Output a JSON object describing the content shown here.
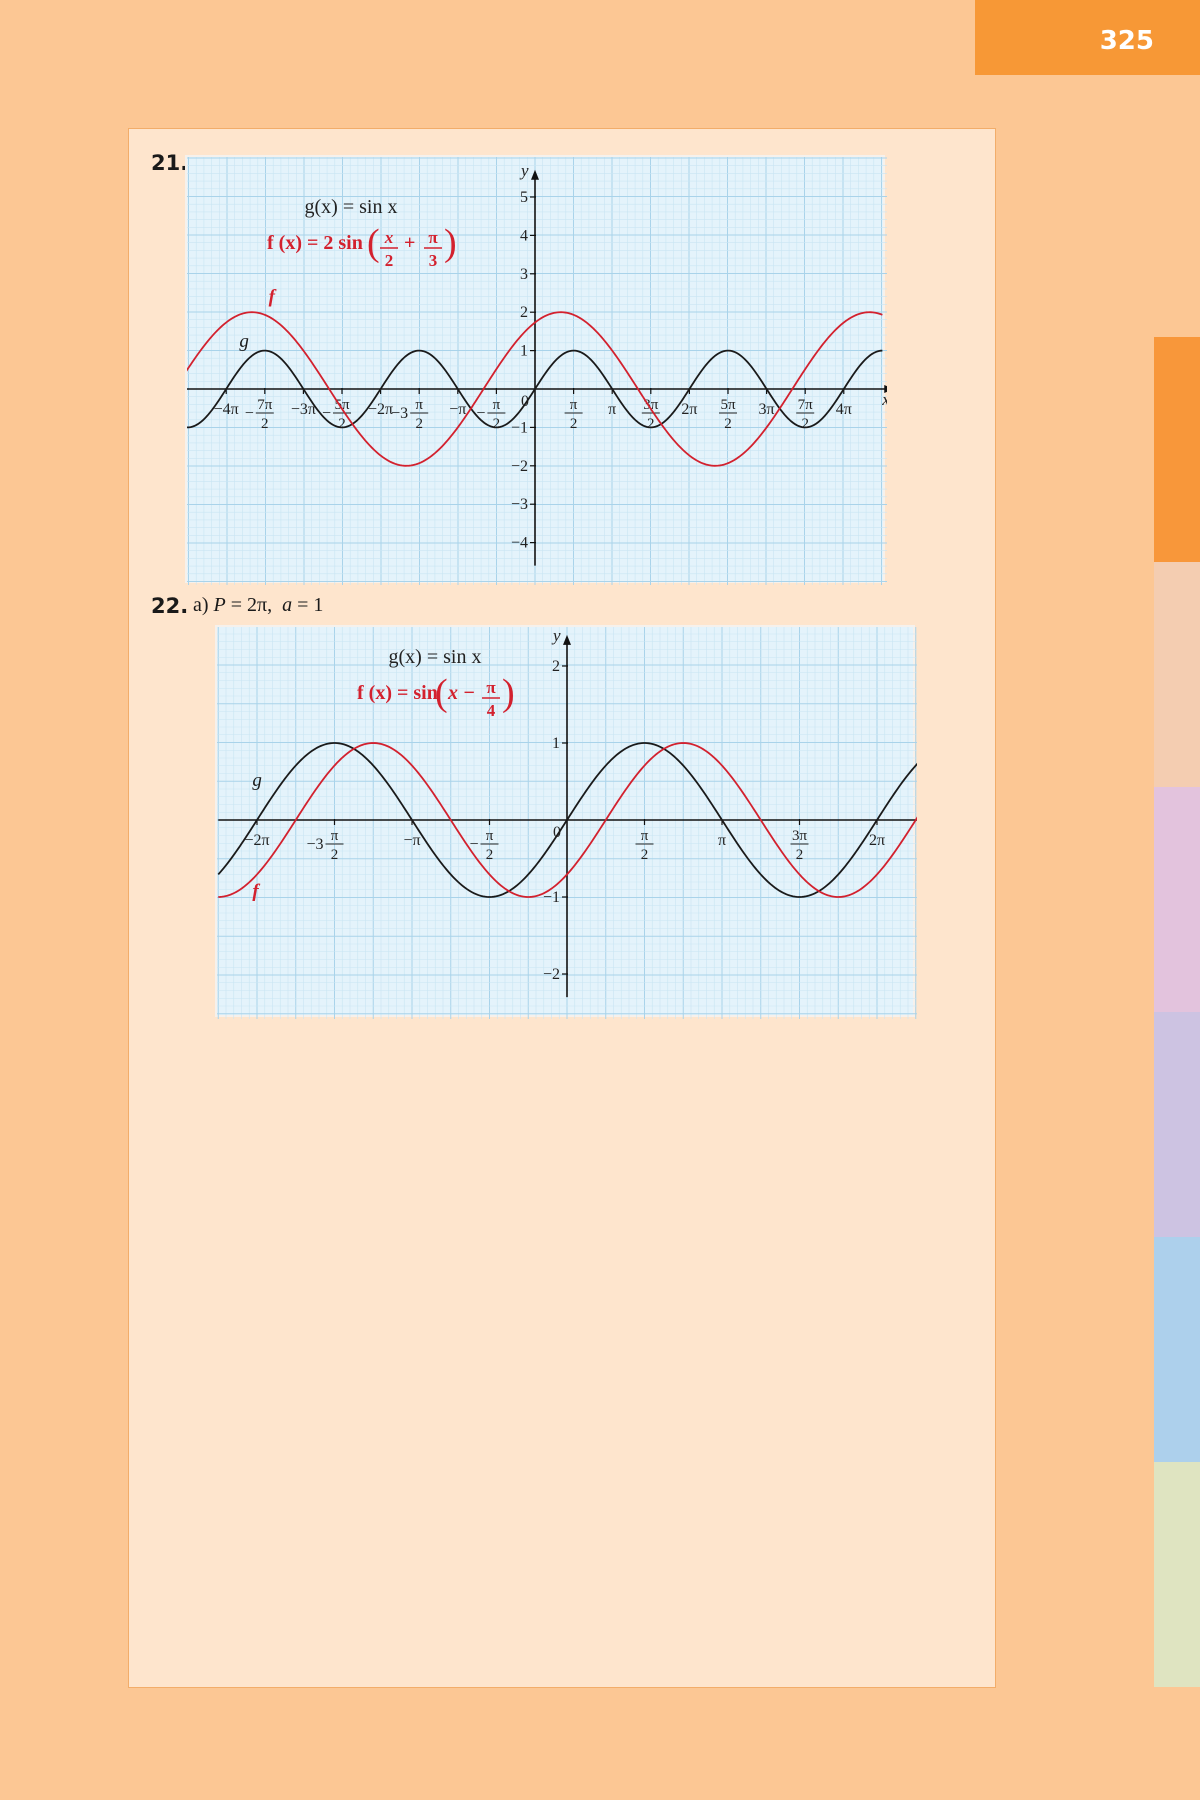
{
  "page": {
    "number": "325",
    "side_tabs": [
      "#f8973a",
      "#f4cdb1",
      "#e3c3dd",
      "#cdc3e2",
      "#add0ec",
      "#dfe4c1"
    ]
  },
  "exercises": [
    {
      "number": "21.",
      "subtitle": ""
    },
    {
      "number": "22.",
      "subtitle_part": "a)",
      "subtitle_p": "P",
      "subtitle_p_rest": " = 2π,",
      "subtitle_a": "a",
      "subtitle_a_rest": " = 1"
    }
  ],
  "chart_data": [
    {
      "type": "line",
      "xlabel": "x",
      "ylabel": "y",
      "xlim": [
        -4.55,
        4.55
      ],
      "ylim": [
        -4.6,
        5.5
      ],
      "x_units": "multiples of π",
      "grid": true,
      "origin_label": "0",
      "x_ticks": [
        {
          "x": -4,
          "label": "−4π"
        },
        {
          "x": -3.5,
          "sign": "−",
          "num": "7π",
          "den": "2"
        },
        {
          "x": -3,
          "label": "−3π"
        },
        {
          "x": -2.5,
          "sign": "−",
          "num": "5π",
          "den": "2"
        },
        {
          "x": -2,
          "label": "−2π"
        },
        {
          "x": -1.5,
          "sign": "−3",
          "num": "π",
          "den": "2"
        },
        {
          "x": -1,
          "label": "−π"
        },
        {
          "x": -0.5,
          "sign": "−",
          "num": "π",
          "den": "2"
        },
        {
          "x": 0.5,
          "num": "π",
          "den": "2"
        },
        {
          "x": 1,
          "label": "π"
        },
        {
          "x": 1.5,
          "num": "3π",
          "den": "2"
        },
        {
          "x": 2,
          "label": "2π"
        },
        {
          "x": 2.5,
          "num": "5π",
          "den": "2"
        },
        {
          "x": 3,
          "label": "3π"
        },
        {
          "x": 3.5,
          "num": "7π",
          "den": "2"
        },
        {
          "x": 4,
          "label": "4π"
        }
      ],
      "y_ticks": [
        {
          "y": 5,
          "label": "5"
        },
        {
          "y": 4,
          "label": "4"
        },
        {
          "y": 3,
          "label": "3"
        },
        {
          "y": 2,
          "label": "2"
        },
        {
          "y": 1,
          "label": "1"
        },
        {
          "y": -1,
          "label": "−1"
        },
        {
          "y": -2,
          "label": "−2"
        },
        {
          "y": -3,
          "label": "−3"
        },
        {
          "y": -4,
          "label": "−4"
        }
      ],
      "legend_g": "g(x) = sin x",
      "legend_f_prefix": "f (x) = 2 sin",
      "legend_f_frac1_num": "x",
      "legend_f_frac1_den": "2",
      "legend_f_plus": "+",
      "legend_f_frac2_num": "π",
      "legend_f_frac2_den": "3",
      "series": [
        {
          "name": "g",
          "formula": "g(x) = sin x",
          "amplitude": 1,
          "frequency": 1,
          "phase": 0,
          "color": "#1a1a1a",
          "label_at": [
            -3.83,
            1.1
          ]
        },
        {
          "name": "f",
          "formula": "f(x) = 2 sin(x/2 + π/3)",
          "amplitude": 2,
          "frequency": 0.5,
          "phase": 1.047198,
          "color": "#d3212e",
          "label_at": [
            -3.45,
            2.25
          ]
        }
      ]
    },
    {
      "type": "line",
      "xlabel": "x",
      "ylabel": "y",
      "xlim": [
        -2.25,
        2.45
      ],
      "ylim": [
        -2.3,
        2.3
      ],
      "x_units": "multiples of π",
      "grid": true,
      "origin_label": "0",
      "x_ticks": [
        {
          "x": -2,
          "label": "−2π"
        },
        {
          "x": -1.5,
          "sign": "−3",
          "num": "π",
          "den": "2"
        },
        {
          "x": -1,
          "label": "−π"
        },
        {
          "x": -0.5,
          "sign": "−",
          "num": "π",
          "den": "2"
        },
        {
          "x": 0.5,
          "num": "π",
          "den": "2"
        },
        {
          "x": 1,
          "label": "π"
        },
        {
          "x": 1.5,
          "num": "3π",
          "den": "2"
        },
        {
          "x": 2,
          "label": "2π"
        }
      ],
      "y_ticks": [
        {
          "y": 2,
          "label": "2"
        },
        {
          "y": 1,
          "label": "1"
        },
        {
          "y": -1,
          "label": "−1"
        },
        {
          "y": -2,
          "label": "−2"
        }
      ],
      "legend_g": "g(x) = sin x",
      "legend_f_prefix": "f (x) = sin",
      "legend_f_inner": "x −",
      "legend_f_frac_num": "π",
      "legend_f_frac_den": "4",
      "series": [
        {
          "name": "g",
          "formula": "g(x) = sin x",
          "amplitude": 1,
          "frequency": 1,
          "phase": 0,
          "color": "#1a1a1a",
          "label_at": [
            -2.03,
            0.44
          ]
        },
        {
          "name": "f",
          "formula": "f(x) = sin(x − π/4)",
          "amplitude": 1,
          "frequency": 1,
          "phase": -0.785398,
          "color": "#d3212e",
          "label_at": [
            -2.03,
            -1.0
          ]
        }
      ]
    }
  ]
}
